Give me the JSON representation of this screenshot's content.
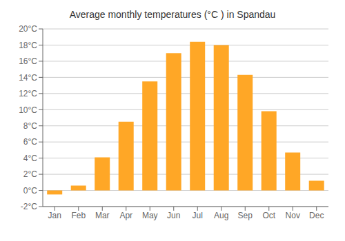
{
  "chart_data": {
    "type": "bar",
    "title": "Average monthly temperatures (°C ) in Spandau",
    "categories": [
      "Jan",
      "Feb",
      "Mar",
      "Apr",
      "May",
      "Jun",
      "Jul",
      "Aug",
      "Sep",
      "Oct",
      "Nov",
      "Dec"
    ],
    "values": [
      -0.5,
      0.6,
      4.1,
      8.5,
      13.5,
      17.0,
      18.4,
      18.0,
      14.3,
      9.8,
      4.7,
      1.2
    ],
    "color": "#FFA726",
    "ylim": [
      -2,
      20
    ],
    "yticks": [
      {
        "value": -2,
        "label": "-2°C"
      },
      {
        "value": 0,
        "label": "0°C"
      },
      {
        "value": 2,
        "label": "2°C"
      },
      {
        "value": 4,
        "label": "4°C"
      },
      {
        "value": 6,
        "label": "6°C"
      },
      {
        "value": 8,
        "label": "8°C"
      },
      {
        "value": 10,
        "label": "10°C"
      },
      {
        "value": 12,
        "label": "12°C"
      },
      {
        "value": 14,
        "label": "14°C"
      },
      {
        "value": 16,
        "label": "16°C"
      },
      {
        "value": 18,
        "label": "18°C"
      },
      {
        "value": 20,
        "label": "20°C"
      }
    ],
    "grid": true
  }
}
